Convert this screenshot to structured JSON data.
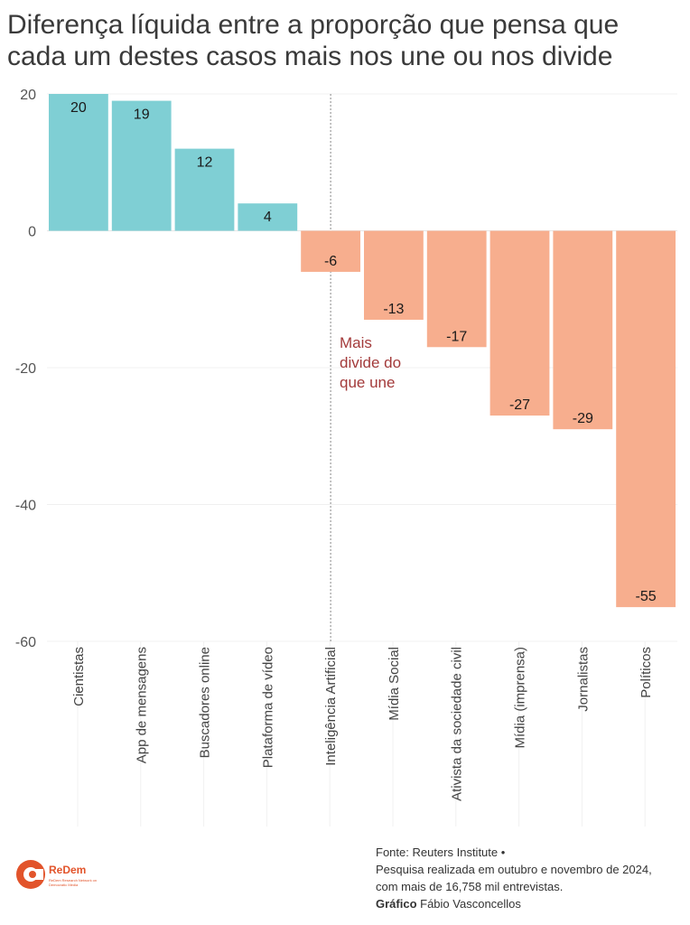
{
  "title": "Diferença líquida entre a proporção que pensa que cada um destes casos mais nos une ou nos divide",
  "annotation": [
    "Mais",
    "divide do",
    "que une"
  ],
  "source": {
    "line1": "Fonte: Reuters Institute •",
    "line2": "Pesquisa realizada em outubro e novembro de 2024,",
    "line3": "com mais de 16,758 mil entrevistas.",
    "credit_prefix": "Gráfico",
    "credit_name": "Fábio Vasconcellos"
  },
  "logo": {
    "name": "ReDem",
    "tagline": "ReDem Research Network on Democratic Media"
  },
  "chart_data": {
    "type": "bar",
    "categories": [
      "Cientistas",
      "App de mensagens",
      "Buscadores online",
      "Plataforma de vídeo",
      "Inteligência Artificial",
      "Mídia Social",
      "Ativista da sociedade civil",
      "Mídia (imprensa)",
      "Jornalistas",
      "Políticos"
    ],
    "values": [
      20,
      19,
      12,
      4,
      -6,
      -13,
      -17,
      -27,
      -29,
      -55
    ],
    "title": "Diferença líquida entre a proporção que pensa que cada um destes casos mais nos une ou nos divide",
    "xlabel": "",
    "ylabel": "",
    "ylim": [
      -60,
      20
    ],
    "yticks": [
      20,
      0,
      -20,
      -40,
      -60
    ],
    "colors": {
      "positive": "#7fcfd4",
      "negative": "#f7ae8e"
    },
    "grid": true,
    "legend": "none"
  }
}
